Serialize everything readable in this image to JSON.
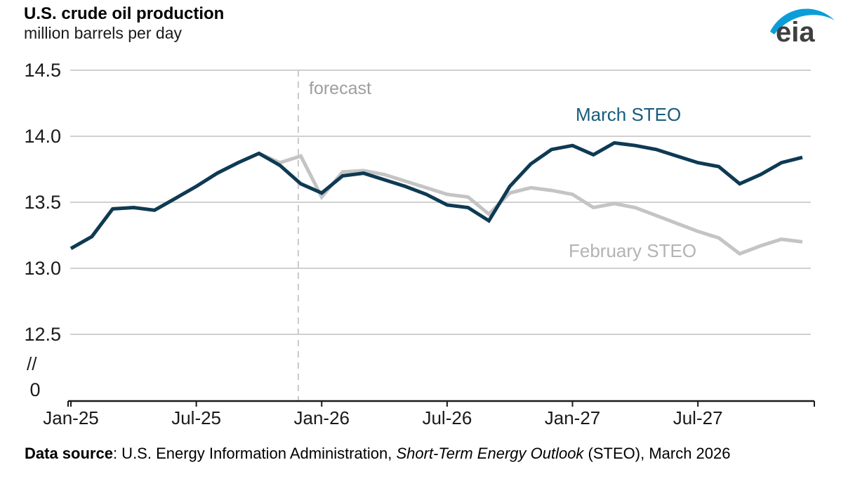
{
  "header": {
    "title": "U.S. crude oil production",
    "subtitle": "million barrels per day",
    "logo_text": "eia"
  },
  "chart_data": {
    "type": "line",
    "title": "U.S. crude oil production",
    "ylabel": "million barrels per day",
    "ylim_display": [
      12.5,
      14.5
    ],
    "grid": "horizontal",
    "legend_position": "inline-labels",
    "y_ticks": [
      {
        "value": 14.5,
        "label": "14.5"
      },
      {
        "value": 14.0,
        "label": "14.0"
      },
      {
        "value": 13.5,
        "label": "13.5"
      },
      {
        "value": 13.0,
        "label": "13.0"
      },
      {
        "value": 12.5,
        "label": "12.5"
      }
    ],
    "y_axis_break": "//",
    "y_zero_label": "0",
    "months": [
      "Jan-25",
      "Feb-25",
      "Mar-25",
      "Apr-25",
      "May-25",
      "Jun-25",
      "Jul-25",
      "Aug-25",
      "Sep-25",
      "Oct-25",
      "Nov-25",
      "Dec-25",
      "Jan-26",
      "Feb-26",
      "Mar-26",
      "Apr-26",
      "May-26",
      "Jun-26",
      "Jul-26",
      "Aug-26",
      "Sep-26",
      "Oct-26",
      "Nov-26",
      "Dec-26",
      "Jan-27",
      "Feb-27",
      "Mar-27",
      "Apr-27",
      "May-27",
      "Jun-27",
      "Jul-27",
      "Aug-27",
      "Sep-27",
      "Oct-27",
      "Nov-27",
      "Dec-27"
    ],
    "x_ticks": [
      {
        "label": "Jan-25",
        "month_index": 0
      },
      {
        "label": "Jul-25",
        "month_index": 6
      },
      {
        "label": "Jan-26",
        "month_index": 12
      },
      {
        "label": "Jul-26",
        "month_index": 18
      },
      {
        "label": "Jan-27",
        "month_index": 24
      },
      {
        "label": "Jul-27",
        "month_index": 30
      }
    ],
    "forecast_label": "forecast",
    "forecast_start_month": "Dec-25",
    "series": [
      {
        "name": "February STEO",
        "color": "#c4c4c4",
        "values": [
          13.15,
          13.24,
          13.45,
          13.46,
          13.44,
          13.53,
          13.62,
          13.72,
          13.8,
          13.87,
          13.8,
          13.85,
          13.54,
          13.73,
          13.74,
          13.71,
          13.66,
          13.61,
          13.56,
          13.54,
          13.41,
          13.57,
          13.61,
          13.59,
          13.56,
          13.46,
          13.49,
          13.46,
          13.4,
          13.34,
          13.28,
          13.23,
          13.11,
          13.17,
          13.22,
          13.2
        ]
      },
      {
        "name": "March STEO",
        "color": "#0e3a53",
        "values": [
          13.15,
          13.24,
          13.45,
          13.46,
          13.44,
          13.53,
          13.62,
          13.72,
          13.8,
          13.87,
          13.78,
          13.64,
          13.57,
          13.7,
          13.72,
          13.67,
          13.62,
          13.56,
          13.48,
          13.46,
          13.36,
          13.62,
          13.79,
          13.9,
          13.93,
          13.86,
          13.95,
          13.93,
          13.9,
          13.85,
          13.8,
          13.77,
          13.64,
          13.71,
          13.8,
          13.84
        ]
      }
    ]
  },
  "colors": {
    "march_line": "#0e3a53",
    "march_label": "#175b7d",
    "february_line": "#c4c4c4",
    "february_label": "#b3b3b3",
    "gridline": "#d0d0d0",
    "forecast_divider": "#c9c9c9",
    "forecast_text": "#9e9e9e",
    "axis": "#1a1a1a",
    "logo_blue": "#0b9dda",
    "logo_text": "#3f3f3f"
  },
  "footer": {
    "prefix_bold": "Data source",
    "text_regular": ": U.S. Energy Information Administration, ",
    "text_italic": "Short-Term Energy Outlook",
    "text_suffix": " (STEO), March 2026"
  }
}
